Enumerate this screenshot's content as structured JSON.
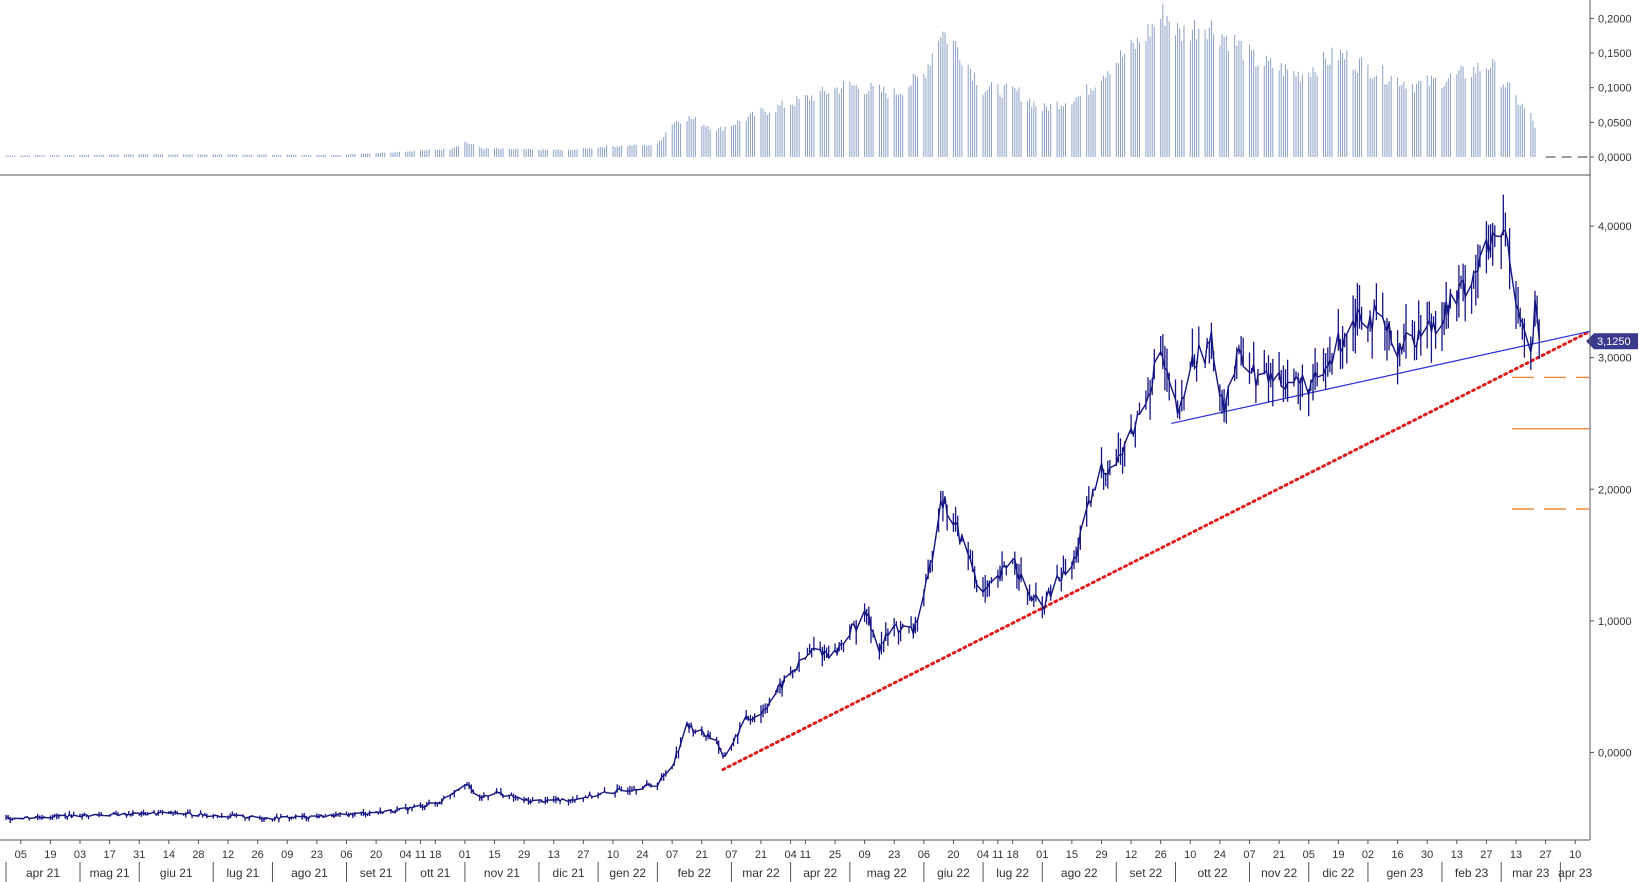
{
  "chart_data": [
    {
      "type": "bar",
      "panel": "volatility",
      "y_ticks": [
        "0,0000",
        "0,0500",
        "0,1000",
        "0,1500",
        "0,2000"
      ],
      "y_tick_values": [
        0,
        0.05,
        0.1,
        0.15,
        0.2
      ],
      "ylim": [
        0,
        0.215
      ],
      "x_start": "2021-03-29",
      "x_end": "2023-04-17",
      "anchors": [
        [
          "2021-03-29",
          0.002
        ],
        [
          "2021-06-01",
          0.004
        ],
        [
          "2021-09-01",
          0.003
        ],
        [
          "2021-10-04",
          0.008
        ],
        [
          "2021-10-25",
          0.012
        ],
        [
          "2021-11-01",
          0.022
        ],
        [
          "2021-11-10",
          0.012
        ],
        [
          "2021-12-20",
          0.01
        ],
        [
          "2022-01-10",
          0.016
        ],
        [
          "2022-01-31",
          0.018
        ],
        [
          "2022-02-07",
          0.05
        ],
        [
          "2022-02-14",
          0.058
        ],
        [
          "2022-03-01",
          0.04
        ],
        [
          "2022-03-21",
          0.065
        ],
        [
          "2022-04-11",
          0.085
        ],
        [
          "2022-05-01",
          0.105
        ],
        [
          "2022-05-23",
          0.092
        ],
        [
          "2022-06-06",
          0.12
        ],
        [
          "2022-06-14",
          0.185
        ],
        [
          "2022-06-22",
          0.16
        ],
        [
          "2022-07-04",
          0.1
        ],
        [
          "2022-07-20",
          0.095
        ],
        [
          "2022-08-01",
          0.07
        ],
        [
          "2022-08-20",
          0.09
        ],
        [
          "2022-09-01",
          0.13
        ],
        [
          "2022-09-15",
          0.165
        ],
        [
          "2022-09-28",
          0.21
        ],
        [
          "2022-10-05",
          0.18
        ],
        [
          "2022-10-17",
          0.195
        ],
        [
          "2022-11-01",
          0.165
        ],
        [
          "2022-11-10",
          0.14
        ],
        [
          "2022-12-01",
          0.12
        ],
        [
          "2022-12-19",
          0.15
        ],
        [
          "2023-01-09",
          0.12
        ],
        [
          "2023-01-25",
          0.105
        ],
        [
          "2023-02-10",
          0.115
        ],
        [
          "2023-03-01",
          0.135
        ],
        [
          "2023-03-13",
          0.085
        ],
        [
          "2023-03-20",
          0.06
        ],
        [
          "2023-03-22",
          0.045
        ]
      ],
      "last_bar": "2023-03-22",
      "zero_dash_from": "2023-03-27"
    },
    {
      "type": "line",
      "panel": "price",
      "y_ticks": [
        "0,0000",
        "1,0000",
        "2,0000",
        "3,0000",
        "4,0000"
      ],
      "y_tick_values": [
        0,
        1,
        2,
        3,
        4
      ],
      "ylim": [
        -0.65,
        4.35
      ],
      "last_value": 3.125,
      "last_value_label": "3,1250",
      "anchors": [
        [
          "2021-03-29",
          -0.5
        ],
        [
          "2021-05-01",
          -0.48
        ],
        [
          "2021-06-15",
          -0.46
        ],
        [
          "2021-08-01",
          -0.5
        ],
        [
          "2021-09-01",
          -0.48
        ],
        [
          "2021-10-01",
          -0.44
        ],
        [
          "2021-10-20",
          -0.38
        ],
        [
          "2021-11-01",
          -0.23
        ],
        [
          "2021-11-08",
          -0.35
        ],
        [
          "2021-11-15",
          -0.3
        ],
        [
          "2021-12-01",
          -0.37
        ],
        [
          "2021-12-20",
          -0.36
        ],
        [
          "2022-01-10",
          -0.3
        ],
        [
          "2022-01-31",
          -0.24
        ],
        [
          "2022-02-07",
          -0.1
        ],
        [
          "2022-02-14",
          0.2
        ],
        [
          "2022-02-21",
          0.15
        ],
        [
          "2022-02-28",
          0.1
        ],
        [
          "2022-03-03",
          -0.05
        ],
        [
          "2022-03-14",
          0.25
        ],
        [
          "2022-03-21",
          0.3
        ],
        [
          "2022-04-04",
          0.6
        ],
        [
          "2022-04-15",
          0.78
        ],
        [
          "2022-04-25",
          0.75
        ],
        [
          "2022-05-01",
          0.9
        ],
        [
          "2022-05-10",
          1.05
        ],
        [
          "2022-05-16",
          0.8
        ],
        [
          "2022-05-23",
          0.95
        ],
        [
          "2022-06-01",
          0.92
        ],
        [
          "2022-06-08",
          1.3
        ],
        [
          "2022-06-14",
          1.95
        ],
        [
          "2022-06-20",
          1.75
        ],
        [
          "2022-06-27",
          1.5
        ],
        [
          "2022-07-04",
          1.2
        ],
        [
          "2022-07-11",
          1.3
        ],
        [
          "2022-07-18",
          1.5
        ],
        [
          "2022-07-25",
          1.2
        ],
        [
          "2022-08-01",
          1.1
        ],
        [
          "2022-08-08",
          1.3
        ],
        [
          "2022-08-15",
          1.4
        ],
        [
          "2022-08-22",
          1.8
        ],
        [
          "2022-08-29",
          2.15
        ],
        [
          "2022-09-05",
          2.2
        ],
        [
          "2022-09-12",
          2.4
        ],
        [
          "2022-09-20",
          2.75
        ],
        [
          "2022-09-26",
          3.05
        ],
        [
          "2022-10-01",
          2.7
        ],
        [
          "2022-10-05",
          2.55
        ],
        [
          "2022-10-10",
          2.95
        ],
        [
          "2022-10-20",
          3.1
        ],
        [
          "2022-10-26",
          2.65
        ],
        [
          "2022-11-03",
          3.05
        ],
        [
          "2022-11-10",
          2.85
        ],
        [
          "2022-11-20",
          2.85
        ],
        [
          "2022-12-01",
          2.8
        ],
        [
          "2022-12-10",
          2.8
        ],
        [
          "2022-12-19",
          3.1
        ],
        [
          "2022-12-28",
          3.35
        ],
        [
          "2023-01-05",
          3.3
        ],
        [
          "2023-01-16",
          3.1
        ],
        [
          "2023-01-23",
          3.15
        ],
        [
          "2023-02-01",
          3.25
        ],
        [
          "2023-02-13",
          3.45
        ],
        [
          "2023-02-27",
          3.8
        ],
        [
          "2023-03-08",
          3.95
        ],
        [
          "2023-03-13",
          3.5
        ],
        [
          "2023-03-16",
          3.25
        ],
        [
          "2023-03-20",
          3.0
        ],
        [
          "2023-03-22",
          3.35
        ],
        [
          "2023-03-24",
          3.125
        ]
      ],
      "lines": [
        {
          "style": "dotted",
          "color": "#e31a1a",
          "from": [
            "2022-03-03",
            -0.13
          ],
          "to": [
            "2023-04-17",
            3.2
          ]
        },
        {
          "style": "solid",
          "color": "#2b2bdc",
          "from": [
            "2022-10-01",
            2.5
          ],
          "to": [
            "2023-04-17",
            3.2
          ]
        }
      ],
      "levels": [
        {
          "value": 2.85,
          "style": "dashed",
          "color": "#f0883c"
        },
        {
          "value": 2.46,
          "style": "solid",
          "color": "#f0883c"
        },
        {
          "value": 1.85,
          "style": "dashed",
          "color": "#f0883c"
        }
      ]
    }
  ],
  "x_axis": {
    "ticks": [
      {
        "date": "2021-04-05",
        "label": "05"
      },
      {
        "date": "2021-04-19",
        "label": "19"
      },
      {
        "date": "2021-05-03",
        "label": "03"
      },
      {
        "date": "2021-05-17",
        "label": "17"
      },
      {
        "date": "2021-05-31",
        "label": "31"
      },
      {
        "date": "2021-06-14",
        "label": "14"
      },
      {
        "date": "2021-06-28",
        "label": "28"
      },
      {
        "date": "2021-07-12",
        "label": "12"
      },
      {
        "date": "2021-07-26",
        "label": "26"
      },
      {
        "date": "2021-08-09",
        "label": "09"
      },
      {
        "date": "2021-08-23",
        "label": "23"
      },
      {
        "date": "2021-09-06",
        "label": "06"
      },
      {
        "date": "2021-09-20",
        "label": "20"
      },
      {
        "date": "2021-10-04",
        "label": "04"
      },
      {
        "date": "2021-10-11",
        "label": "11"
      },
      {
        "date": "2021-10-18",
        "label": "18"
      },
      {
        "date": "2021-11-01",
        "label": "01"
      },
      {
        "date": "2021-11-15",
        "label": "15"
      },
      {
        "date": "2021-11-29",
        "label": "29"
      },
      {
        "date": "2021-12-13",
        "label": "13"
      },
      {
        "date": "2021-12-27",
        "label": "27"
      },
      {
        "date": "2022-01-10",
        "label": "10"
      },
      {
        "date": "2022-01-24",
        "label": "24"
      },
      {
        "date": "2022-02-07",
        "label": "07"
      },
      {
        "date": "2022-02-21",
        "label": "21"
      },
      {
        "date": "2022-03-07",
        "label": "07"
      },
      {
        "date": "2022-03-21",
        "label": "21"
      },
      {
        "date": "2022-04-04",
        "label": "04"
      },
      {
        "date": "2022-04-11",
        "label": "11"
      },
      {
        "date": "2022-04-25",
        "label": "25"
      },
      {
        "date": "2022-05-09",
        "label": "09"
      },
      {
        "date": "2022-05-23",
        "label": "23"
      },
      {
        "date": "2022-06-06",
        "label": "06"
      },
      {
        "date": "2022-06-20",
        "label": "20"
      },
      {
        "date": "2022-07-04",
        "label": "04"
      },
      {
        "date": "2022-07-11",
        "label": "11"
      },
      {
        "date": "2022-07-18",
        "label": "18"
      },
      {
        "date": "2022-08-01",
        "label": "01"
      },
      {
        "date": "2022-08-15",
        "label": "15"
      },
      {
        "date": "2022-08-29",
        "label": "29"
      },
      {
        "date": "2022-09-12",
        "label": "12"
      },
      {
        "date": "2022-09-26",
        "label": "26"
      },
      {
        "date": "2022-10-10",
        "label": "10"
      },
      {
        "date": "2022-10-24",
        "label": "24"
      },
      {
        "date": "2022-11-07",
        "label": "07"
      },
      {
        "date": "2022-11-21",
        "label": "21"
      },
      {
        "date": "2022-12-05",
        "label": "05"
      },
      {
        "date": "2022-12-19",
        "label": "19"
      },
      {
        "date": "2023-01-02",
        "label": "02"
      },
      {
        "date": "2023-01-16",
        "label": "16"
      },
      {
        "date": "2023-01-30",
        "label": "30"
      },
      {
        "date": "2023-02-13",
        "label": "13"
      },
      {
        "date": "2023-02-27",
        "label": "27"
      },
      {
        "date": "2023-03-13",
        "label": "13"
      },
      {
        "date": "2023-03-27",
        "label": "27"
      },
      {
        "date": "2023-04-10",
        "label": "10"
      }
    ],
    "months": [
      {
        "start": "2021-03-29",
        "label": "apr 21"
      },
      {
        "start": "2021-05-03",
        "label": "mag 21"
      },
      {
        "start": "2021-05-31",
        "label": "giu 21"
      },
      {
        "start": "2021-07-05",
        "label": "lug 21"
      },
      {
        "start": "2021-08-02",
        "label": "ago 21"
      },
      {
        "start": "2021-09-06",
        "label": "set 21"
      },
      {
        "start": "2021-10-04",
        "label": "ott 21"
      },
      {
        "start": "2021-11-01",
        "label": "nov 21"
      },
      {
        "start": "2021-12-06",
        "label": "dic 21"
      },
      {
        "start": "2022-01-03",
        "label": "gen 22"
      },
      {
        "start": "2022-01-31",
        "label": "feb 22"
      },
      {
        "start": "2022-03-07",
        "label": "mar 22"
      },
      {
        "start": "2022-04-04",
        "label": "apr 22"
      },
      {
        "start": "2022-05-02",
        "label": "mag 22"
      },
      {
        "start": "2022-06-06",
        "label": "giu 22"
      },
      {
        "start": "2022-07-04",
        "label": "lug 22"
      },
      {
        "start": "2022-08-01",
        "label": "ago 22"
      },
      {
        "start": "2022-09-05",
        "label": "set 22"
      },
      {
        "start": "2022-10-03",
        "label": "ott 22"
      },
      {
        "start": "2022-11-07",
        "label": "nov 22"
      },
      {
        "start": "2022-12-05",
        "label": "dic 22"
      },
      {
        "start": "2023-01-02",
        "label": "gen 23"
      },
      {
        "start": "2023-02-06",
        "label": "feb 23"
      },
      {
        "start": "2023-03-06",
        "label": "mar 23"
      },
      {
        "start": "2023-04-03",
        "label": "apr 23"
      }
    ]
  },
  "colors": {
    "price_line": "#141482",
    "volatility_bar": "#8aa2c6",
    "axis": "#555555",
    "badge": "#3a3a8c",
    "dotted_trend": "#e31a1a",
    "solid_trend": "#2b2bdc",
    "level": "#f0883c"
  }
}
